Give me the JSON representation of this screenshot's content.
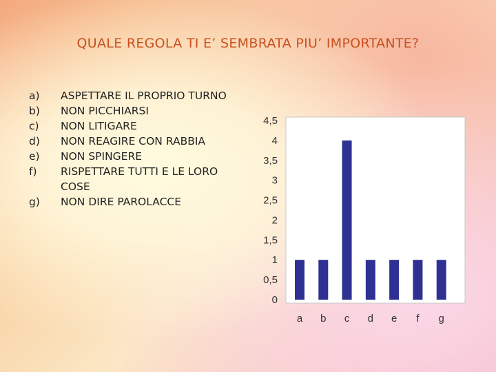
{
  "title": "QUALE REGOLA TI E’ SEMBRATA PIU’ IMPORTANTE?",
  "options": [
    {
      "letter": "a)",
      "text": "ASPETTARE IL PROPRIO TURNO"
    },
    {
      "letter": "b)",
      "text": "NON PICCHIARSI"
    },
    {
      "letter": "c)",
      "text": "NON LITIGARE"
    },
    {
      "letter": "d)",
      "text": "NON REAGIRE CON RABBIA"
    },
    {
      "letter": "e)",
      "text": "NON SPINGERE"
    },
    {
      "letter": "f)",
      "text": "RISPETTARE TUTTI E LE LORO COSE"
    },
    {
      "letter": "g)",
      "text": "NON DIRE PAROLACCE"
    }
  ],
  "chart_data": {
    "type": "bar",
    "categories": [
      "a",
      "b",
      "c",
      "d",
      "e",
      "f",
      "g"
    ],
    "values": [
      1,
      1,
      4,
      1,
      1,
      1,
      1
    ],
    "ylim": [
      0,
      4.5
    ],
    "yticks": [
      "0",
      "0,5",
      "1",
      "1,5",
      "2",
      "2,5",
      "3",
      "3,5",
      "4",
      "4,5"
    ],
    "grid": false,
    "bar_color": "#2e3192"
  }
}
